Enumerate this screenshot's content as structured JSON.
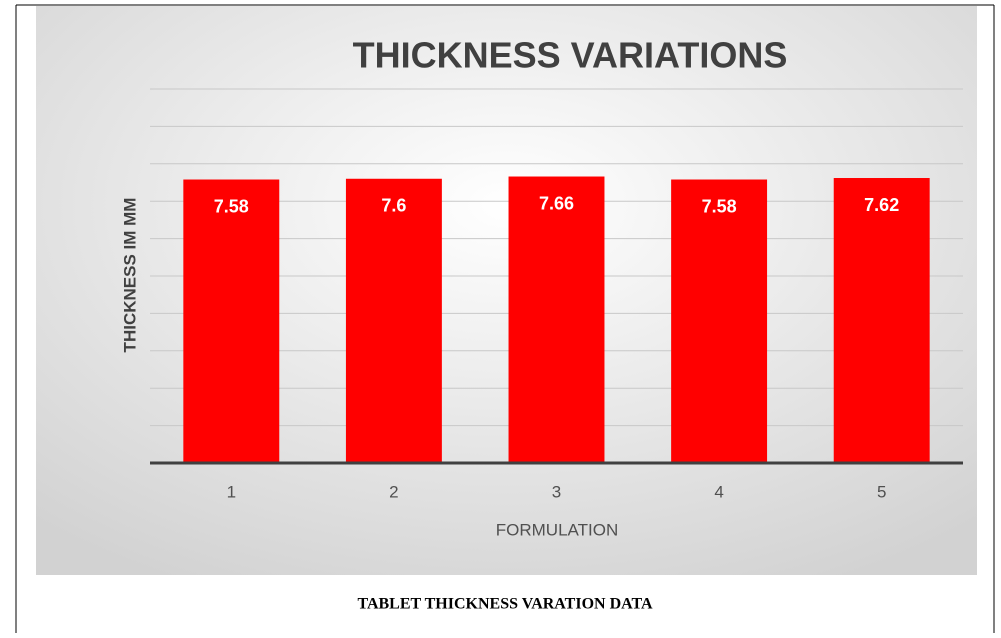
{
  "chart_data": {
    "type": "bar",
    "title": "THICKNESS VARIATIONS",
    "x_label": "FORMULATION",
    "y_label": "THICKNESS IM MM",
    "categories": [
      "1",
      "2",
      "3",
      "4",
      "5"
    ],
    "values": [
      7.58,
      7.6,
      7.66,
      7.58,
      7.62
    ],
    "color": "#ff0000",
    "ylim": [
      0,
      10
    ],
    "yticks": [
      0,
      1,
      2,
      3,
      4,
      5,
      6,
      7,
      8,
      9,
      10
    ],
    "grid": true,
    "caption": "TABLET THICKNESS VARATION DATA"
  }
}
